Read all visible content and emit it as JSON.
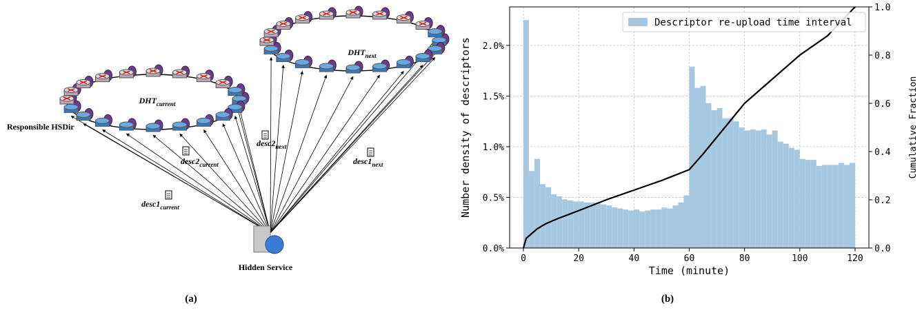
{
  "diagram": {
    "dht_current": {
      "base": "DHT",
      "sub": "current"
    },
    "dht_next": {
      "base": "DHT",
      "sub": "next"
    },
    "responsible": "Responsible HSDir",
    "desc1_current": {
      "base": "desc1",
      "sub": "current"
    },
    "desc2_current": {
      "base": "desc2",
      "sub": "current"
    },
    "desc1_next": {
      "base": "desc1",
      "sub": "next"
    },
    "desc2_next": {
      "base": "desc2",
      "sub": "next"
    },
    "hidden_service": "Hidden Service"
  },
  "captions": [
    "(a)",
    "(b)"
  ],
  "chart_data": {
    "type": "histogram",
    "xlabel": "Time (minute)",
    "ylabel": "Number density of descriptors",
    "y2label": "Cumulative Fraction",
    "bins": [
      0,
      2,
      4,
      6,
      8,
      10,
      12,
      14,
      16,
      18,
      20,
      22,
      24,
      26,
      28,
      30,
      32,
      34,
      36,
      38,
      40,
      42,
      44,
      46,
      48,
      50,
      52,
      54,
      56,
      58,
      60,
      62,
      64,
      66,
      68,
      70,
      72,
      74,
      76,
      78,
      80,
      82,
      84,
      86,
      88,
      90,
      92,
      94,
      96,
      98,
      100,
      102,
      104,
      106,
      108,
      110,
      112,
      114,
      116,
      118,
      120
    ],
    "series": [
      {
        "name": "Descriptor re-upload time interval",
        "type": "histogram",
        "color": "#a6c8e0",
        "values": [
          2.25,
          0.76,
          0.88,
          0.63,
          0.6,
          0.53,
          0.51,
          0.48,
          0.47,
          0.46,
          0.46,
          0.45,
          0.45,
          0.44,
          0.43,
          0.42,
          0.4,
          0.39,
          0.38,
          0.37,
          0.38,
          0.36,
          0.37,
          0.38,
          0.38,
          0.4,
          0.39,
          0.42,
          0.45,
          0.52,
          1.79,
          1.58,
          1.6,
          1.43,
          1.36,
          1.38,
          1.28,
          1.28,
          1.25,
          1.19,
          1.16,
          1.17,
          1.16,
          1.17,
          1.12,
          1.16,
          1.05,
          1.03,
          0.99,
          0.97,
          0.88,
          0.87,
          0.87,
          0.81,
          0.82,
          0.82,
          0.82,
          0.84,
          0.82,
          0.84
        ]
      },
      {
        "type": "line",
        "axis": "y2",
        "color": "#000000",
        "x": [
          0,
          1,
          3,
          5,
          8,
          12,
          20,
          30,
          40,
          50,
          60,
          65,
          70,
          80,
          90,
          100,
          110,
          120
        ],
        "values": [
          0,
          0.04,
          0.06,
          0.08,
          0.1,
          0.12,
          0.155,
          0.2,
          0.24,
          0.28,
          0.325,
          0.39,
          0.46,
          0.6,
          0.7,
          0.8,
          0.88,
          1.0
        ]
      }
    ],
    "xlim": [
      -5,
      125
    ],
    "xticks": [
      0,
      20,
      40,
      60,
      80,
      100,
      120
    ],
    "ylim": [
      0,
      2.38
    ],
    "yticks": [
      {
        "value": 0,
        "label": "0.0%"
      },
      {
        "value": 0.5,
        "label": "0.5%"
      },
      {
        "value": 1,
        "label": "1.0%"
      },
      {
        "value": 1.5,
        "label": "1.5%"
      },
      {
        "value": 2,
        "label": "2.0%"
      }
    ],
    "y2lim": [
      0,
      1
    ],
    "y2ticks": [
      {
        "value": 0,
        "label": "0.0"
      },
      0.2,
      0.4,
      0.6,
      0.8,
      {
        "value": 1,
        "label": "1.0"
      }
    ],
    "grid": true,
    "legend": "upper right"
  }
}
